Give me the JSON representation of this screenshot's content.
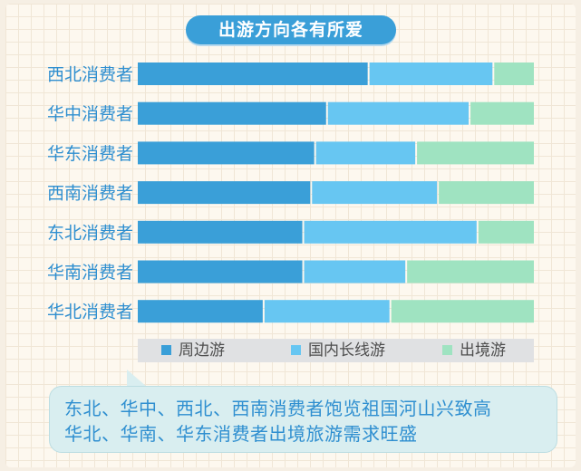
{
  "chart_data": {
    "type": "bar",
    "orientation": "horizontal",
    "stacked": true,
    "percent_stacked": true,
    "title": "出游方向各有所爱",
    "categories": [
      "西北消费者",
      "华中消费者",
      "华东消费者",
      "西南消费者",
      "东北消费者",
      "华南消费者",
      "华北消费者"
    ],
    "series": [
      {
        "name": "周边游",
        "values": [
          58.5,
          48.0,
          45.0,
          44.0,
          42.0,
          42.0,
          32.0
        ]
      },
      {
        "name": "国内长线游",
        "values": [
          31.5,
          36.0,
          25.5,
          32.0,
          44.0,
          26.0,
          32.0
        ]
      },
      {
        "name": "出境游",
        "values": [
          10.0,
          16.0,
          29.5,
          24.0,
          14.0,
          32.0,
          36.0
        ]
      }
    ],
    "xlim": [
      0,
      100
    ],
    "grid": false,
    "legend_position": "bottom",
    "colors": [
      "#3a9fd8",
      "#67c6f2",
      "#9fe3c1"
    ]
  },
  "legend": {
    "items": [
      {
        "label": "周边游",
        "color": "#3a9fd8"
      },
      {
        "label": "国内长线游",
        "color": "#67c6f2"
      },
      {
        "label": "出境游",
        "color": "#9fe3c1"
      }
    ]
  },
  "note": {
    "line1": "东北、华中、西北、西南消费者饱览祖国河山兴致高",
    "line2": "华北、华南、华东消费者出境旅游需求旺盛"
  }
}
